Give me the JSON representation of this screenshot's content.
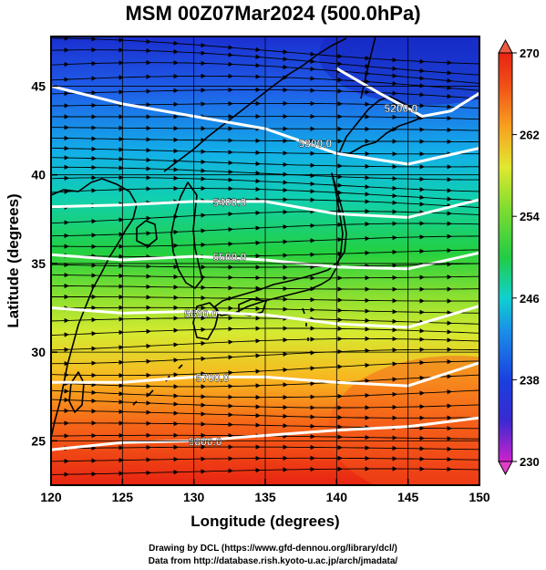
{
  "title": "MSM 00Z07Mar2024 (500.0hPa)",
  "xlabel": "Longitude (degrees)",
  "ylabel": "Latitude  (degrees)",
  "footer": {
    "credit": "Drawing by DCL (https://www.gfd-dennou.org/library/dcl/)",
    "source": "Data from http://database.rish.kyoto-u.ac.jp/arch/jmadata/"
  },
  "colors": {
    "temp_low": "#cc22cc",
    "temp_mid": "#22cc44",
    "temp_high": "#ee3311",
    "contour": "#ffffff",
    "streamline": "#000000"
  },
  "chart_data": {
    "type": "heatmap",
    "xlim": [
      120,
      150
    ],
    "ylim": [
      22.5,
      47.8
    ],
    "x_ticks": [
      120,
      125,
      130,
      135,
      140,
      145,
      150
    ],
    "y_ticks": [
      25,
      30,
      35,
      40,
      45
    ],
    "colorbar": {
      "min": 230,
      "max": 270,
      "ticks": [
        230,
        238,
        246,
        254,
        262,
        270
      ]
    },
    "height_contours": [
      {
        "label": "5200.0",
        "lon": [
          140,
          143,
          146,
          148,
          150
        ],
        "lat": [
          46.0,
          44.6,
          43.3,
          43.6,
          44.6
        ],
        "label_lon": 144.5,
        "label_lat": 43.8
      },
      {
        "label": "5300.0",
        "lon": [
          120,
          125,
          130,
          135,
          140,
          145,
          150
        ],
        "lat": [
          45.0,
          44.0,
          43.3,
          42.6,
          41.2,
          40.6,
          41.5
        ],
        "label_lon": 138.5,
        "label_lat": 41.8
      },
      {
        "label": "5400.0",
        "lon": [
          120,
          125,
          130,
          135,
          140,
          145,
          150
        ],
        "lat": [
          38.2,
          38.3,
          38.5,
          38.5,
          37.8,
          37.6,
          38.6
        ],
        "label_lon": 132.5,
        "label_lat": 38.5
      },
      {
        "label": "5500.0",
        "lon": [
          120,
          125,
          130,
          135,
          140,
          145,
          150
        ],
        "lat": [
          35.5,
          35.2,
          35.4,
          35.2,
          34.8,
          34.7,
          35.6
        ],
        "label_lon": 132.5,
        "label_lat": 35.4
      },
      {
        "label": "5600.0",
        "lon": [
          120,
          125,
          130,
          135,
          140,
          145,
          150
        ],
        "lat": [
          32.5,
          32.2,
          32.3,
          32.1,
          31.6,
          31.4,
          32.6
        ],
        "label_lon": 130.5,
        "label_lat": 32.2
      },
      {
        "label": "5700.0",
        "lon": [
          120,
          125,
          130,
          135,
          140,
          145,
          150
        ],
        "lat": [
          28.3,
          28.3,
          28.6,
          28.6,
          28.3,
          28.1,
          29.4
        ],
        "label_lon": 131.3,
        "label_lat": 28.6
      },
      {
        "label": "5800.0",
        "lon": [
          120,
          125,
          130,
          135,
          140,
          145,
          150
        ],
        "lat": [
          24.5,
          24.9,
          25.0,
          25.3,
          25.6,
          25.8,
          26.3
        ],
        "label_lon": 130.8,
        "label_lat": 25.0
      }
    ]
  }
}
